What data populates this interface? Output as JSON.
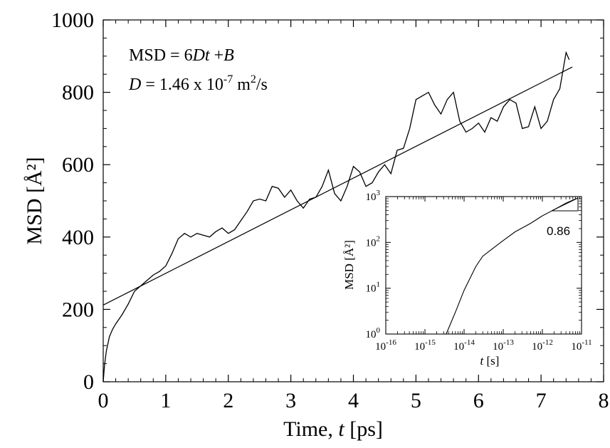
{
  "chart_data": [
    {
      "type": "line",
      "xlabel_prefix": "Time, ",
      "xlabel_var": "t",
      "xlabel_unit": " [ps]",
      "ylabel": "MSD [Å²]",
      "xlim": [
        0,
        8
      ],
      "ylim": [
        0,
        1000
      ],
      "xticks": [
        "0",
        "1",
        "2",
        "3",
        "4",
        "5",
        "6",
        "7",
        "8"
      ],
      "yticks": [
        "0",
        "200",
        "400",
        "600",
        "800",
        "1000"
      ],
      "grid": false,
      "annotations": {
        "eq_msd": "MSD",
        "eq_eq": " = 6",
        "eq_D": "D",
        "eq_t": "t",
        "eq_plus": " +",
        "eq_B": "B",
        "d_var": "D",
        "d_value": " = 1.46 x 10",
        "d_exp": "-7",
        "d_unit": " m",
        "d_unit_exp": "2",
        "d_unit_tail": "/s"
      },
      "series": [
        {
          "kind": "msd-trajectory",
          "x": [
            0.0,
            0.02,
            0.05,
            0.1,
            0.15,
            0.2,
            0.3,
            0.4,
            0.5,
            0.6,
            0.7,
            0.8,
            0.9,
            1.0,
            1.1,
            1.2,
            1.3,
            1.4,
            1.5,
            1.6,
            1.7,
            1.8,
            1.9,
            2.0,
            2.1,
            2.2,
            2.3,
            2.4,
            2.5,
            2.6,
            2.7,
            2.8,
            2.9,
            3.0,
            3.1,
            3.2,
            3.3,
            3.4,
            3.5,
            3.6,
            3.7,
            3.8,
            3.9,
            4.0,
            4.1,
            4.2,
            4.3,
            4.4,
            4.5,
            4.6,
            4.7,
            4.8,
            4.9,
            5.0,
            5.1,
            5.2,
            5.3,
            5.4,
            5.5,
            5.6,
            5.7,
            5.8,
            5.9,
            6.0,
            6.1,
            6.2,
            6.3,
            6.4,
            6.5,
            6.6,
            6.7,
            6.8,
            6.9,
            7.0,
            7.1,
            7.2,
            7.3,
            7.35,
            7.4,
            7.45
          ],
          "y": [
            0,
            45,
            85,
            125,
            145,
            160,
            185,
            215,
            250,
            265,
            280,
            295,
            305,
            320,
            355,
            395,
            410,
            400,
            410,
            405,
            400,
            415,
            425,
            410,
            420,
            445,
            470,
            500,
            505,
            500,
            540,
            535,
            510,
            530,
            500,
            480,
            505,
            510,
            540,
            585,
            520,
            500,
            540,
            595,
            580,
            540,
            550,
            580,
            600,
            575,
            640,
            645,
            700,
            780,
            790,
            800,
            765,
            740,
            780,
            800,
            720,
            690,
            700,
            715,
            690,
            730,
            720,
            760,
            780,
            770,
            700,
            705,
            760,
            700,
            720,
            780,
            810,
            860,
            910,
            890
          ]
        },
        {
          "kind": "linear-fit",
          "x": [
            0,
            7.5
          ],
          "y": [
            212,
            870
          ]
        }
      ]
    },
    {
      "type": "line",
      "inset": true,
      "xlabel_var": "t",
      "xlabel_unit": " [s]",
      "ylabel": "MSD [Å²]",
      "xscale": "log",
      "yscale": "log",
      "xlim": [
        1e-16,
        1e-11
      ],
      "ylim": [
        1,
        1000
      ],
      "xtick_exponents": [
        "-16",
        "-15",
        "-14",
        "-13",
        "-12",
        "-11"
      ],
      "ytick_exponents": [
        "0",
        "1",
        "2",
        "3"
      ],
      "tick_base": "10",
      "slope_label": "0.86",
      "series": [
        {
          "kind": "msd-loglog",
          "x": [
            3.5e-15,
            6e-15,
            1e-14,
            2e-14,
            3e-14,
            5e-14,
            1e-13,
            2e-13,
            5e-13,
            1e-12,
            2e-12,
            4e-12,
            7.45e-12
          ],
          "y": [
            1,
            3,
            9,
            30,
            50,
            70,
            110,
            170,
            260,
            380,
            520,
            720,
            910
          ]
        }
      ]
    }
  ]
}
